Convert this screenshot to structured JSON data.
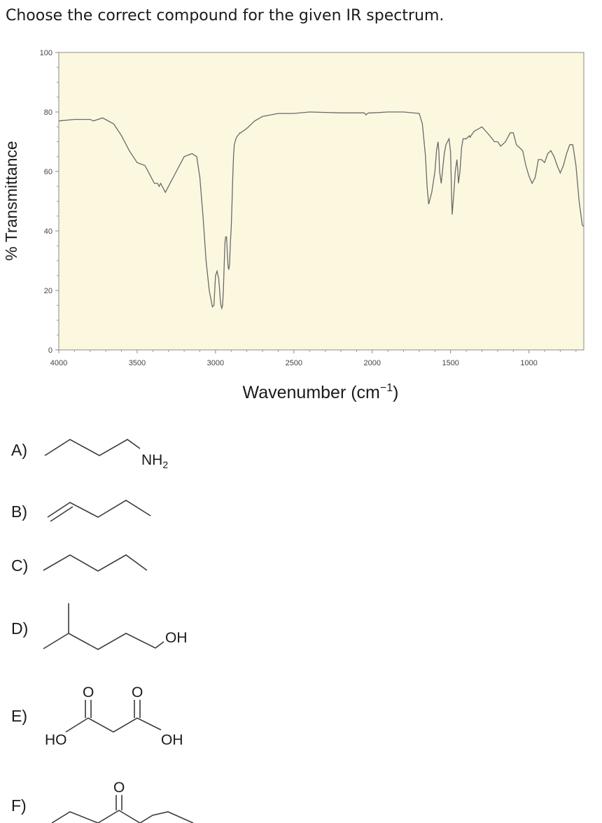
{
  "question": "Choose the correct compound for the given IR spectrum.",
  "chart_data": {
    "type": "line",
    "title": "",
    "xlabel_main": "Wavenumber (cm",
    "xlabel_sup": "−1",
    "xlabel_close": ")",
    "ylabel": "% Transmittance",
    "xlim": [
      4000,
      650
    ],
    "ylim": [
      0,
      100
    ],
    "x_reversed": true,
    "grid": false,
    "background": "#fcf8e0",
    "line_color": "#6a6a6a",
    "xticks": [
      "4000",
      "3500",
      "3000",
      "2500",
      "2000",
      "1500",
      "1000"
    ],
    "yticks": [
      "0",
      "20",
      "40",
      "60",
      "80",
      "100"
    ],
    "series": [
      {
        "x": [
          4000,
          3900,
          3800,
          3780,
          3720,
          3650,
          3600,
          3550,
          3500,
          3450,
          3420,
          3400,
          3390,
          3370,
          3360,
          3350,
          3335,
          3320,
          3300,
          3250,
          3200,
          3150,
          3120,
          3100,
          3080,
          3060,
          3040,
          3020,
          3010,
          3000,
          2990,
          2980,
          2975,
          2970,
          2965,
          2960,
          2955,
          2950,
          2945,
          2940,
          2935,
          2930,
          2925,
          2920,
          2915,
          2910,
          2905,
          2900,
          2895,
          2890,
          2885,
          2880,
          2870,
          2860,
          2850,
          2845,
          2840,
          2800,
          2750,
          2700,
          2600,
          2500,
          2400,
          2200,
          2100,
          2050,
          2040,
          2030,
          2020,
          2000,
          1900,
          1800,
          1700,
          1680,
          1660,
          1650,
          1640,
          1620,
          1600,
          1590,
          1580,
          1575,
          1570,
          1560,
          1550,
          1540,
          1530,
          1520,
          1510,
          1500,
          1495,
          1490,
          1480,
          1470,
          1460,
          1455,
          1450,
          1440,
          1430,
          1420,
          1400,
          1380,
          1375,
          1370,
          1350,
          1300,
          1250,
          1220,
          1200,
          1180,
          1150,
          1120,
          1100,
          1080,
          1060,
          1040,
          1020,
          1000,
          980,
          960,
          940,
          920,
          900,
          880,
          860,
          840,
          820,
          800,
          780,
          760,
          740,
          720,
          700,
          680,
          660,
          650
        ],
        "y": [
          77,
          77.5,
          77.5,
          77,
          78,
          76,
          72,
          67,
          63,
          62,
          59,
          57,
          56,
          56,
          55,
          56,
          54.5,
          53,
          55,
          60,
          65,
          66,
          65,
          58,
          45,
          30,
          20,
          14.5,
          15,
          25,
          26.5,
          24,
          21,
          17,
          15,
          14,
          15,
          20,
          28,
          36,
          38,
          38,
          33,
          28,
          27,
          29,
          36,
          41,
          49,
          58,
          65,
          69,
          71,
          72,
          72.5,
          73,
          73,
          74.5,
          77,
          78.5,
          79.5,
          79.5,
          80,
          79.7,
          79.7,
          79.7,
          79,
          79.5,
          79.7,
          79.7,
          80,
          80,
          79.5,
          76,
          65,
          55,
          49,
          53,
          60,
          67,
          70,
          67,
          60,
          56,
          61,
          66,
          69,
          70,
          71,
          66.5,
          55,
          45.5,
          52,
          60,
          64,
          61,
          56,
          60,
          68,
          71,
          71,
          72,
          71.5,
          72,
          73.5,
          75,
          72,
          70,
          70,
          68.5,
          70,
          73,
          73,
          69,
          68,
          67,
          62,
          58.5,
          56,
          58,
          64,
          64,
          63,
          66,
          67,
          65,
          62,
          59.5,
          62,
          66,
          69,
          69,
          62,
          50,
          42,
          41.5
        ]
      }
    ]
  },
  "options": [
    {
      "label": "A)",
      "name": "butylamine"
    },
    {
      "label": "B)",
      "name": "butene"
    },
    {
      "label": "C)",
      "name": "butane"
    },
    {
      "label": "D)",
      "name": "branched-alcohol"
    },
    {
      "label": "E)",
      "name": "malonic-acid"
    },
    {
      "label": "F)",
      "name": "ester"
    }
  ],
  "structure_labels": {
    "a_group": "NH",
    "a_sub": "2",
    "d_group": "OH",
    "e_left": "HO",
    "e_right": "OH",
    "oxygen": "O"
  }
}
